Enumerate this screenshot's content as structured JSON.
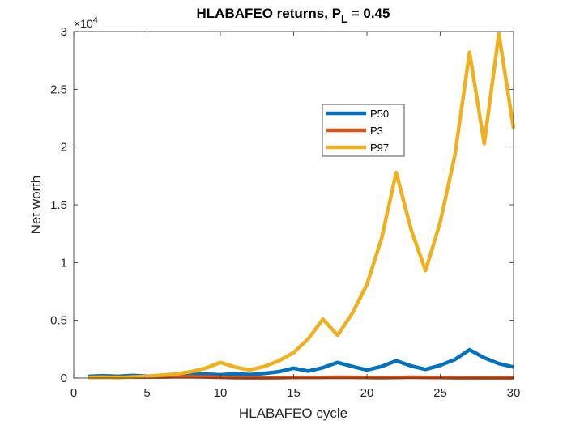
{
  "chart_data": {
    "type": "line",
    "title_main": "HLABAFEO returns, P",
    "title_sub": "L",
    "title_tail": " = 0.45",
    "xlabel": "HLABAFEO cycle",
    "ylabel": "Net worth",
    "xlim": [
      0,
      30
    ],
    "ylim": [
      0,
      30000
    ],
    "xticks": [
      0,
      5,
      10,
      15,
      20,
      25,
      30
    ],
    "yticks": [
      0,
      5000,
      10000,
      15000,
      20000,
      25000,
      30000
    ],
    "ytick_labels": [
      "0",
      "0.5",
      "1",
      "1.5",
      "2",
      "2.5",
      "3"
    ],
    "exponent_base": "×10",
    "exponent_power": "4",
    "legend_position": "upper-center-right",
    "grid": false,
    "x": [
      1,
      2,
      3,
      4,
      5,
      6,
      7,
      8,
      9,
      10,
      11,
      12,
      13,
      14,
      15,
      16,
      17,
      18,
      19,
      20,
      21,
      22,
      23,
      24,
      25,
      26,
      27,
      28,
      29,
      30
    ],
    "series": [
      {
        "name": "P50",
        "color": "#0072BD",
        "values": [
          150,
          200,
          150,
          230,
          160,
          180,
          250,
          300,
          350,
          280,
          380,
          300,
          400,
          550,
          850,
          600,
          900,
          1350,
          1000,
          700,
          1000,
          1500,
          1050,
          750,
          1100,
          1600,
          2450,
          1750,
          1250,
          950
        ]
      },
      {
        "name": "P3",
        "color": "#D95319",
        "values": [
          60,
          70,
          80,
          80,
          90,
          100,
          110,
          110,
          100,
          60,
          30,
          20,
          15,
          30,
          50,
          55,
          50,
          70,
          60,
          40,
          30,
          40,
          70,
          50,
          40,
          20,
          20,
          30,
          10,
          10
        ]
      },
      {
        "name": "P97",
        "color": "#EDB120",
        "values": [
          50,
          80,
          30,
          100,
          150,
          250,
          350,
          550,
          850,
          1350,
          950,
          700,
          1000,
          1500,
          2200,
          3400,
          5100,
          3700,
          5600,
          8100,
          12100,
          17800,
          12900,
          9300,
          13500,
          19300,
          28200,
          20300,
          29800,
          21600
        ]
      }
    ]
  }
}
